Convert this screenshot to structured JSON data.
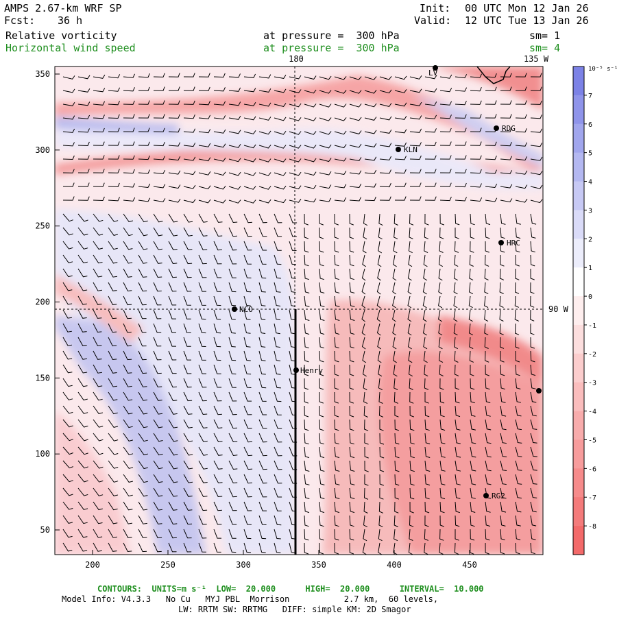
{
  "header": {
    "model": "AMPS 2.67-km WRF SP",
    "fcst_label": "Fcst:",
    "fcst_value": "36 h",
    "init_label": "Init:",
    "init_value": "00 UTC Mon 12 Jan 26",
    "valid_label": "Valid:",
    "valid_value": "12 UTC Tue 13 Jan 26",
    "field1": "Relative vorticity",
    "field1_level": "at pressure =  300 hPa",
    "field1_sm": "sm= 1",
    "field2": "Horizontal wind speed",
    "field2_level": "at pressure =  300 hPa",
    "field2_sm": "sm= 4"
  },
  "map": {
    "x_ticks": [
      "200",
      "250",
      "300",
      "350",
      "400",
      "450"
    ],
    "y_ticks": [
      "350",
      "300",
      "250",
      "200",
      "150",
      "100",
      "50"
    ],
    "meridian_180": "180",
    "meridian_135w": "135 W",
    "meridian_90w": "90 W",
    "stations": [
      {
        "id": "KLN",
        "label": "KLN"
      },
      {
        "id": "RDG",
        "label": "RDG"
      },
      {
        "id": "HRC",
        "label": "HRC"
      },
      {
        "id": "NCO",
        "label": "NCO"
      },
      {
        "id": "Henry",
        "label": "Henry"
      },
      {
        "id": "RG2",
        "label": "RG2"
      },
      {
        "id": "LV",
        "label": "LV"
      }
    ]
  },
  "colorbar": {
    "units": "10⁻⁵ s⁻¹",
    "labels": [
      "7",
      "6",
      "5",
      "4",
      "3",
      "2",
      "1",
      "0",
      "-1",
      "-2",
      "-3",
      "-4",
      "-5",
      "-6",
      "-7",
      "-8"
    ],
    "colors": {
      "positive": "#7c82e6",
      "negative": "#f36a6a",
      "neutral": "#ffffff"
    }
  },
  "footer": {
    "contours": "CONTOURS:  UNITS=m s⁻¹  LOW=  20.000      HIGH=  20.000      INTERVAL=  10.000",
    "model_info": "Model Info: V4.3.3   No Cu   MYJ PBL  Morrison           2.7 km,  60 levels,",
    "physics": "LW: RRTM SW: RRTMG   DIFF: simple KM: 2D Smagor"
  }
}
